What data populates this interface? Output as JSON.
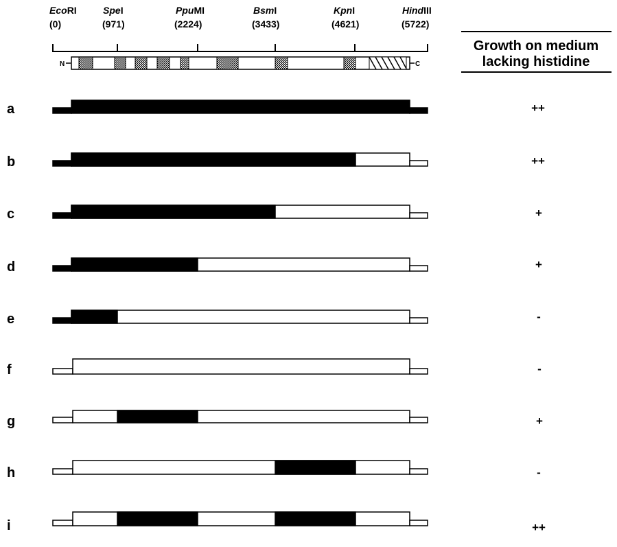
{
  "sites": [
    {
      "italic": "Eco",
      "rest": "RI",
      "position": "(0)"
    },
    {
      "italic": "Spe",
      "rest": "I",
      "position": "(971)"
    },
    {
      "italic": "Ppu",
      "rest": "MI",
      "position": "(2224)"
    },
    {
      "italic": "Bsm",
      "rest": "I",
      "position": "(3433)"
    },
    {
      "italic": "Kpn",
      "rest": "I",
      "position": "(4621)"
    },
    {
      "italic": "Hind",
      "rest": "III",
      "position": "(5722)"
    }
  ],
  "terminal_labels": {
    "n": "N",
    "c": "C"
  },
  "column_header": {
    "line1": "Growth on medium",
    "line2": "lacking histidine"
  },
  "constructs": [
    {
      "label": "a",
      "growth": "++"
    },
    {
      "label": "b",
      "growth": "++"
    },
    {
      "label": "c",
      "growth": "+"
    },
    {
      "label": "d",
      "growth": "+"
    },
    {
      "label": "e",
      "growth": "-"
    },
    {
      "label": "f",
      "growth": "-"
    },
    {
      "label": "g",
      "growth": "+"
    },
    {
      "label": "h",
      "growth": "-"
    },
    {
      "label": "i",
      "growth": "++"
    }
  ],
  "colors": {
    "filled": "#000000",
    "open": "#ffffff",
    "stroke": "#000000"
  }
}
